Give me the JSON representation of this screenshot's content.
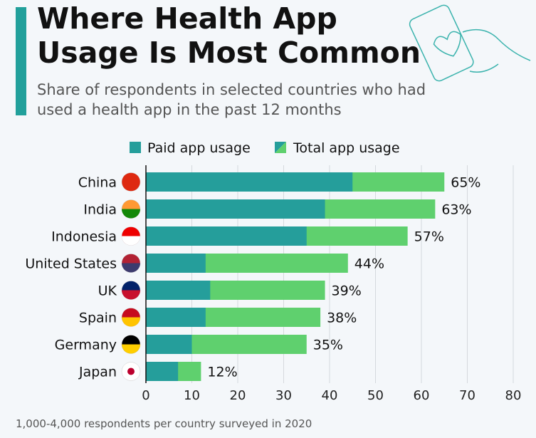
{
  "title": "Where Health App Usage Is Most Common",
  "subtitle": "Share of respondents in selected countries who had used a health app in the past 12 months",
  "footer": "1,000-4,000 respondents per country surveyed in 2020",
  "colors": {
    "paid": "#259e9b",
    "total": "#5fd06e",
    "accent": "#22a09b"
  },
  "chart_data": {
    "type": "bar",
    "orientation": "horizontal",
    "categories": [
      "China",
      "India",
      "Indonesia",
      "United States",
      "UK",
      "Spain",
      "Germany",
      "Japan"
    ],
    "series": [
      {
        "name": "Paid app usage",
        "values": [
          45,
          39,
          35,
          13,
          14,
          13,
          10,
          7
        ]
      },
      {
        "name": "Total app usage",
        "values": [
          65,
          63,
          57,
          44,
          39,
          38,
          35,
          12
        ]
      }
    ],
    "data_labels": [
      "65%",
      "63%",
      "57%",
      "44%",
      "39%",
      "38%",
      "35%",
      "12%"
    ],
    "xlim": [
      0,
      80
    ],
    "xticks": [
      0,
      10,
      20,
      30,
      40,
      50,
      60,
      70,
      80
    ],
    "grid": true,
    "legend": "top"
  }
}
